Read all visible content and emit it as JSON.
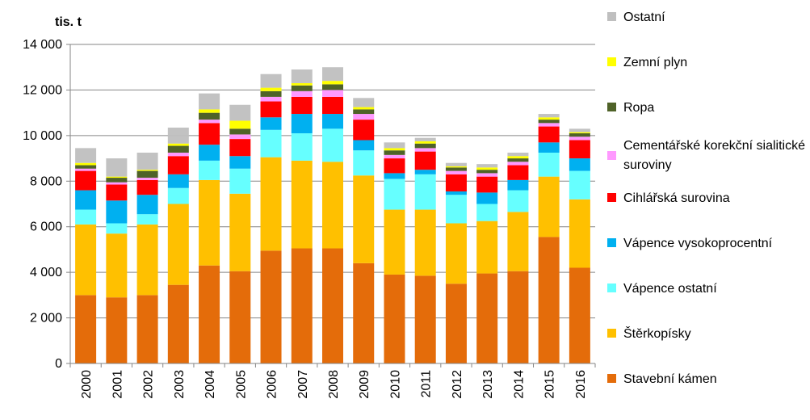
{
  "chart_data": {
    "type": "bar",
    "stacked": true,
    "ylabel": "tis. t",
    "ylim": [
      0,
      14000
    ],
    "ytick_labels": [
      "0",
      "2 000",
      "4 000",
      "6 000",
      "8 000",
      "10 000",
      "12 000",
      "14 000"
    ],
    "ytick_values": [
      0,
      2000,
      4000,
      6000,
      8000,
      10000,
      12000,
      14000
    ],
    "grid": true,
    "legend_position": "right",
    "categories": [
      "2000",
      "2001",
      "2002",
      "2003",
      "2004",
      "2005",
      "2006",
      "2007",
      "2008",
      "2009",
      "2010",
      "2011",
      "2012",
      "2013",
      "2014",
      "2015",
      "2016"
    ],
    "series": [
      {
        "name": "Stavební kámen",
        "color": "#E46C0A",
        "values": [
          3000,
          2900,
          3000,
          3450,
          4300,
          4050,
          4950,
          5050,
          5050,
          4400,
          3900,
          3850,
          3500,
          3950,
          4050,
          5550,
          4200
        ]
      },
      {
        "name": "Štěrkopísky",
        "color": "#FFC000",
        "values": [
          3100,
          2800,
          3100,
          3550,
          3750,
          3400,
          4100,
          3850,
          3800,
          3850,
          2850,
          2900,
          2650,
          2300,
          2600,
          2650,
          3000
        ]
      },
      {
        "name": "Vápence ostatní",
        "color": "#66FFFF",
        "values": [
          650,
          450,
          450,
          700,
          850,
          1100,
          1200,
          1200,
          1450,
          1100,
          1350,
          1550,
          1250,
          750,
          950,
          1050,
          1250
        ]
      },
      {
        "name": "Vápence vysokoprocentní",
        "color": "#00B0F0",
        "values": [
          850,
          1000,
          850,
          600,
          700,
          550,
          550,
          850,
          650,
          450,
          250,
          200,
          150,
          500,
          450,
          450,
          550
        ]
      },
      {
        "name": "Cihlářská surovina",
        "color": "#FF0000",
        "values": [
          850,
          700,
          650,
          800,
          950,
          750,
          700,
          750,
          750,
          900,
          650,
          800,
          750,
          700,
          650,
          700,
          800
        ]
      },
      {
        "name": "Cementářské korekční sialitické suroviny",
        "color": "#FF99FF",
        "values": [
          100,
          100,
          100,
          150,
          150,
          200,
          200,
          250,
          300,
          250,
          150,
          150,
          150,
          150,
          150,
          150,
          150
        ]
      },
      {
        "name": "Ropa",
        "color": "#4F6228",
        "values": [
          150,
          200,
          300,
          300,
          300,
          250,
          250,
          250,
          250,
          200,
          200,
          200,
          150,
          150,
          150,
          150,
          150
        ]
      },
      {
        "name": "Zemní plyn",
        "color": "#FFFF00",
        "values": [
          100,
          50,
          50,
          100,
          150,
          350,
          150,
          100,
          150,
          100,
          100,
          100,
          50,
          100,
          100,
          100,
          50
        ]
      },
      {
        "name": "Ostatní",
        "color": "#BFBFBF",
        "values": [
          650,
          800,
          750,
          700,
          700,
          700,
          600,
          600,
          600,
          400,
          250,
          150,
          150,
          150,
          150,
          150,
          150
        ]
      }
    ]
  }
}
